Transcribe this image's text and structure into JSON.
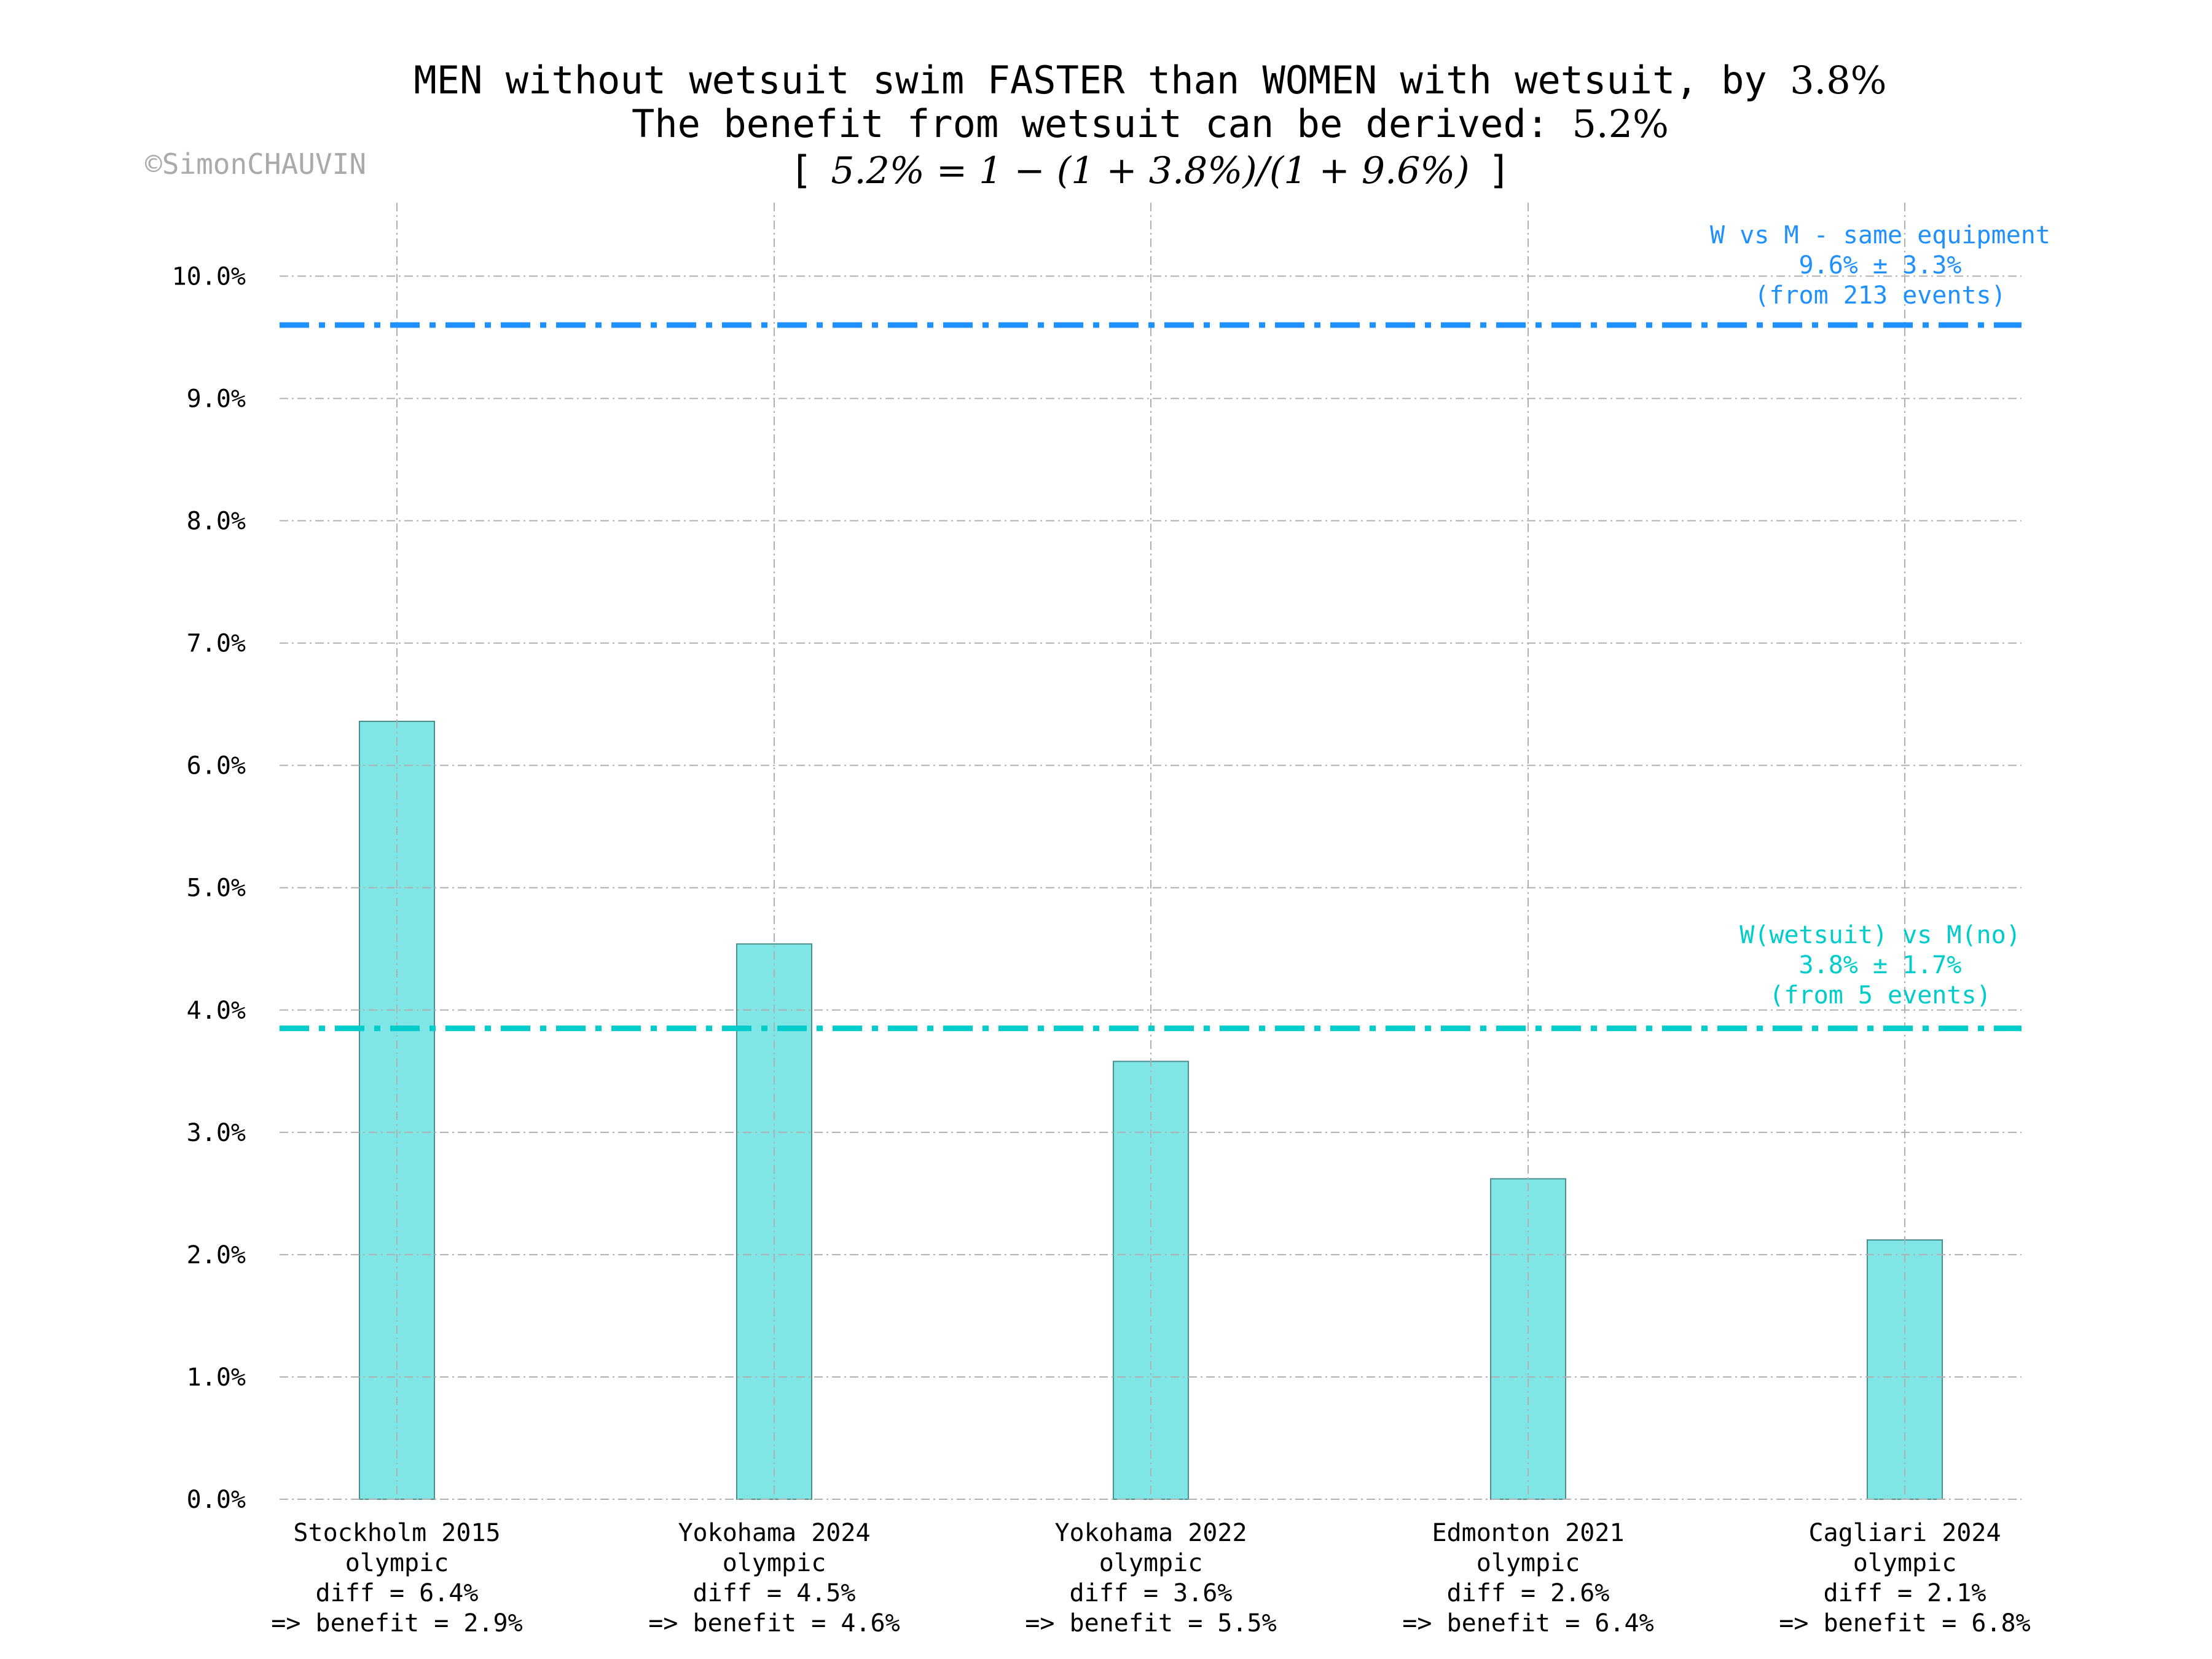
{
  "title": {
    "line1_text": "MEN without wetsuit swim FASTER than WOMEN with wetsuit, by ",
    "line1_value": "3.8%",
    "line2_text": "The benefit from wetsuit can be derived: ",
    "line2_value": "5.2%",
    "line3_open": "[",
    "line3_formula": "5.2% = 1 − (1 + 3.8%)/(1 + 9.6%)",
    "line3_close": "]"
  },
  "watermark": "©SimonCHAUVIN",
  "colors": {
    "bar_fill": "#7fe5e5",
    "bar_edge": "#4a8f8f",
    "same_equipment_line": "#1e90ff",
    "wetsuit_line": "#00cccc",
    "grid": "#b0b0b0"
  },
  "chart_data": {
    "type": "bar",
    "categories": [
      "Stockholm 2015",
      "Yokohama 2024",
      "Yokohama 2022",
      "Edmonton 2021",
      "Cagliari 2024"
    ],
    "category_details": [
      [
        "Stockholm 2015",
        "olympic",
        "diff = 6.4%",
        "=> benefit = 2.9%"
      ],
      [
        "Yokohama 2024",
        "olympic",
        "diff = 4.5%",
        "=> benefit = 4.6%"
      ],
      [
        "Yokohama 2022",
        "olympic",
        "diff = 3.6%",
        "=> benefit = 5.5%"
      ],
      [
        "Edmonton 2021",
        "olympic",
        "diff = 2.6%",
        "=> benefit = 6.4%"
      ],
      [
        "Cagliari 2024",
        "olympic",
        "diff = 2.1%",
        "=> benefit = 6.8%"
      ]
    ],
    "values": [
      6.36,
      4.54,
      3.58,
      2.62,
      2.12
    ],
    "ylim": [
      0,
      10.6
    ],
    "yticks": [
      0,
      1,
      2,
      3,
      4,
      5,
      6,
      7,
      8,
      9,
      10
    ],
    "ytick_labels": [
      "0.0%",
      "1.0%",
      "2.0%",
      "3.0%",
      "4.0%",
      "5.0%",
      "6.0%",
      "7.0%",
      "8.0%",
      "9.0%",
      "10.0%"
    ],
    "grid": true,
    "reference_lines": [
      {
        "value": 9.6,
        "color": "#1e90ff",
        "labels": [
          "W vs M - same equipment",
          "9.6% ± 3.3%",
          "(from 213 events)"
        ]
      },
      {
        "value": 3.85,
        "color": "#00cccc",
        "labels": [
          "W(wetsuit) vs M(no)",
          "3.8% ± 1.7%",
          "(from 5 events)"
        ]
      }
    ]
  }
}
